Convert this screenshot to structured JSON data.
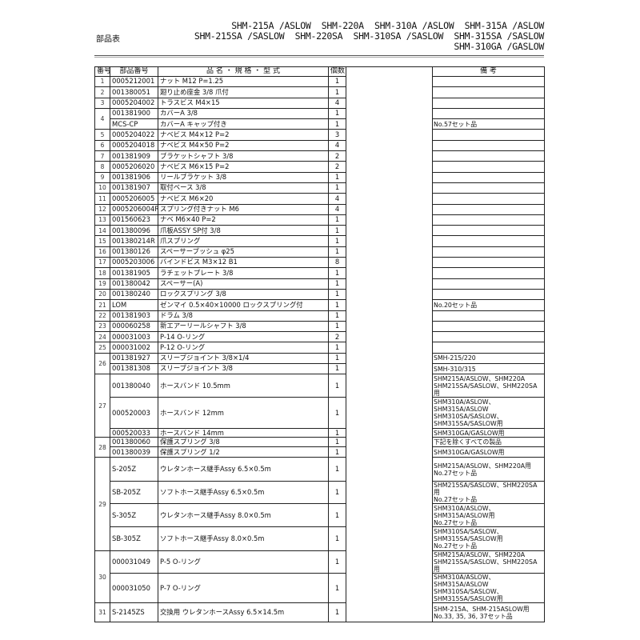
{
  "title": "部品表",
  "models": [
    "SHM-215A /ASLOW  SHM-220A  SHM-310A /ASLOW  SHM-315A /ASLOW",
    "SHM-215SA /SASLOW  SHM-220SA  SHM-310SA /SASLOW  SHM-315SA /SASLOW",
    "SHM-310GA /GASLOW"
  ],
  "headers": {
    "no": "番号",
    "part": "部品番号",
    "name": "品 名 ・ 規 格 ・ 型 式",
    "qty": "個数",
    "note": "備 考"
  },
  "groups": [
    {
      "no": "1",
      "items": [
        {
          "part": "0005212001",
          "name": "ナット M12 P=1.25",
          "qty": "1",
          "note": ""
        }
      ]
    },
    {
      "no": "2",
      "items": [
        {
          "part": "001380051",
          "name": "廻り止め座金 3/8 爪付",
          "qty": "1",
          "note": ""
        }
      ]
    },
    {
      "no": "3",
      "items": [
        {
          "part": "0005204002",
          "name": "トラスビス M4×15",
          "qty": "4",
          "note": ""
        }
      ]
    },
    {
      "no": "4",
      "items": [
        {
          "part": "001381900",
          "name": "カバーA 3/8",
          "qty": "1",
          "note": ""
        },
        {
          "part": "MCS-CP",
          "name": "カバーA キャップ付き",
          "qty": "1",
          "note": "No.57セット品"
        }
      ]
    },
    {
      "no": "5",
      "items": [
        {
          "part": "0005204022",
          "name": "ナベビス M4×12 P=2",
          "qty": "3",
          "note": ""
        }
      ]
    },
    {
      "no": "6",
      "items": [
        {
          "part": "0005204018",
          "name": "ナベビス M4×50 P=2",
          "qty": "4",
          "note": ""
        }
      ]
    },
    {
      "no": "7",
      "items": [
        {
          "part": "001381909",
          "name": "ブラケットシャフト 3/8",
          "qty": "2",
          "note": ""
        }
      ]
    },
    {
      "no": "8",
      "items": [
        {
          "part": "0005206020",
          "name": "ナベビス M6×15 P=2",
          "qty": "2",
          "note": ""
        }
      ]
    },
    {
      "no": "9",
      "items": [
        {
          "part": "001381906",
          "name": "リールブラケット 3/8",
          "qty": "1",
          "note": ""
        }
      ]
    },
    {
      "no": "10",
      "items": [
        {
          "part": "001381907",
          "name": "取付ベース 3/8",
          "qty": "1",
          "note": ""
        }
      ]
    },
    {
      "no": "11",
      "items": [
        {
          "part": "0005206005",
          "name": "ナベビス M6×20",
          "qty": "4",
          "note": ""
        }
      ]
    },
    {
      "no": "12",
      "items": [
        {
          "part": "0005206004R",
          "name": "スプリング付きナット M6",
          "qty": "4",
          "note": ""
        }
      ]
    },
    {
      "no": "13",
      "items": [
        {
          "part": "001560623",
          "name": "ナベ M6×40 P=2",
          "qty": "1",
          "note": ""
        }
      ]
    },
    {
      "no": "14",
      "items": [
        {
          "part": "001380096",
          "name": "爪板ASSY SP付 3/8",
          "qty": "1",
          "note": ""
        }
      ]
    },
    {
      "no": "15",
      "items": [
        {
          "part": "001380214R",
          "name": "爪スプリング",
          "qty": "1",
          "note": ""
        }
      ]
    },
    {
      "no": "16",
      "items": [
        {
          "part": "001380126",
          "name": "スペーサーブッシュ φ25",
          "qty": "1",
          "note": ""
        }
      ]
    },
    {
      "no": "17",
      "items": [
        {
          "part": "0005203006",
          "name": "バインドビス M3×12 B1",
          "qty": "8",
          "note": ""
        }
      ]
    },
    {
      "no": "18",
      "items": [
        {
          "part": "001381905",
          "name": "ラチェットプレート 3/8",
          "qty": "1",
          "note": ""
        }
      ]
    },
    {
      "no": "19",
      "items": [
        {
          "part": "001380042",
          "name": "スペーサー(A)",
          "qty": "1",
          "note": ""
        }
      ]
    },
    {
      "no": "20",
      "items": [
        {
          "part": "001380240",
          "name": "ロックスプリング 3/8",
          "qty": "1",
          "note": ""
        }
      ]
    },
    {
      "no": "21",
      "items": [
        {
          "part": "LOM",
          "name": "ゼンマイ 0.5×40×10000 ロックスプリング付",
          "qty": "1",
          "note": "No.20セット品"
        }
      ]
    },
    {
      "no": "22",
      "items": [
        {
          "part": "001381903",
          "name": "ドラム 3/8",
          "qty": "1",
          "note": ""
        }
      ]
    },
    {
      "no": "23",
      "items": [
        {
          "part": "000060258",
          "name": "新エアーリールシャフト 3/8",
          "qty": "1",
          "note": ""
        }
      ]
    },
    {
      "no": "24",
      "items": [
        {
          "part": "000031003",
          "name": "P-14 O-リング",
          "qty": "2",
          "note": ""
        }
      ]
    },
    {
      "no": "25",
      "items": [
        {
          "part": "000031002",
          "name": "P-12 O-リング",
          "qty": "1",
          "note": ""
        }
      ]
    },
    {
      "no": "26",
      "items": [
        {
          "part": "001381927",
          "name": "スリーブジョイント 3/8×1/4",
          "qty": "1",
          "note": "SMH-215/220"
        },
        {
          "part": "001381308",
          "name": "スリーブジョイント 3/8",
          "qty": "1",
          "note": "SMH-310/315"
        }
      ]
    },
    {
      "no": "27",
      "items": [
        {
          "part": "001380040",
          "name": "ホースバンド 10.5mm",
          "qty": "1",
          "note": "SHM215A/ASLOW、SHM220A\nSHM215SA/SASLOW、SHM220SA用"
        },
        {
          "part": "000520003",
          "name": "ホースバンド 12mm",
          "qty": "1",
          "note": "SHM310A/ASLOW、\nSHM315A/ASLOW\nSHM310SA/SASLOW、\nSHM315SA/SASLOW用"
        },
        {
          "part": "000520033",
          "name": "ホースバンド 14mm",
          "qty": "1",
          "note": "SHM310GA/GASLOW用"
        }
      ]
    },
    {
      "no": "28",
      "items": [
        {
          "part": "001380060",
          "name": "保護スプリング 3/8",
          "qty": "1",
          "note": "下記を除くすべての製品"
        },
        {
          "part": "001380039",
          "name": "保護スプリング 1/2",
          "qty": "1",
          "note": "SHM310GA/GASLOW用"
        }
      ]
    },
    {
      "no": "29",
      "items": [
        {
          "part": "S-205Z",
          "name": "ウレタンホース継手Assy 6.5×0.5m",
          "qty": "1",
          "note": "SHM215A/ASLOW、SHM220A用\n No.27セット品"
        },
        {
          "part": "SB-205Z",
          "name": "ソフトホース継手Assy 6.5×0.5m",
          "qty": "1",
          "note": "SHM215SA/SASLOW、SHM220SA用\n No.27セット品"
        },
        {
          "part": "S-305Z",
          "name": "ウレタンホース継手Assy 8.0×0.5m",
          "qty": "1",
          "note": "SHM310A/ASLOW、\nSHM315A/ASLOW用\n No.27セット品"
        },
        {
          "part": "SB-305Z",
          "name": "ソフトホース継手Assy 8.0×0.5m",
          "qty": "1",
          "note": "SHM310SA/SASLOW、\nSHM315SA/SASLOW用\n No.27セット品"
        }
      ]
    },
    {
      "no": "30",
      "items": [
        {
          "part": "000031049",
          "name": "P-5 O-リング",
          "qty": "1",
          "note": "SHM215A/ASLOW、SHM220A\nSHM215SA/SASLOW、SHM220SA用"
        },
        {
          "part": "000031050",
          "name": "P-7 O-リング",
          "qty": "1",
          "note": "SHM310A/ASLOW、\nSHM315A/ASLOW\nSHM310SA/SASLOW、\nSHM315SA/SASLOW用"
        }
      ]
    },
    {
      "no": "31",
      "items": [
        {
          "part": "S-2145ZS",
          "name": "交換用 ウレタンホースAssy 6.5×14.5m",
          "qty": "1",
          "note": "SHM-215A、SHM-215ASLOW用\nNo.33, 35, 36, 37セット品"
        }
      ]
    }
  ]
}
